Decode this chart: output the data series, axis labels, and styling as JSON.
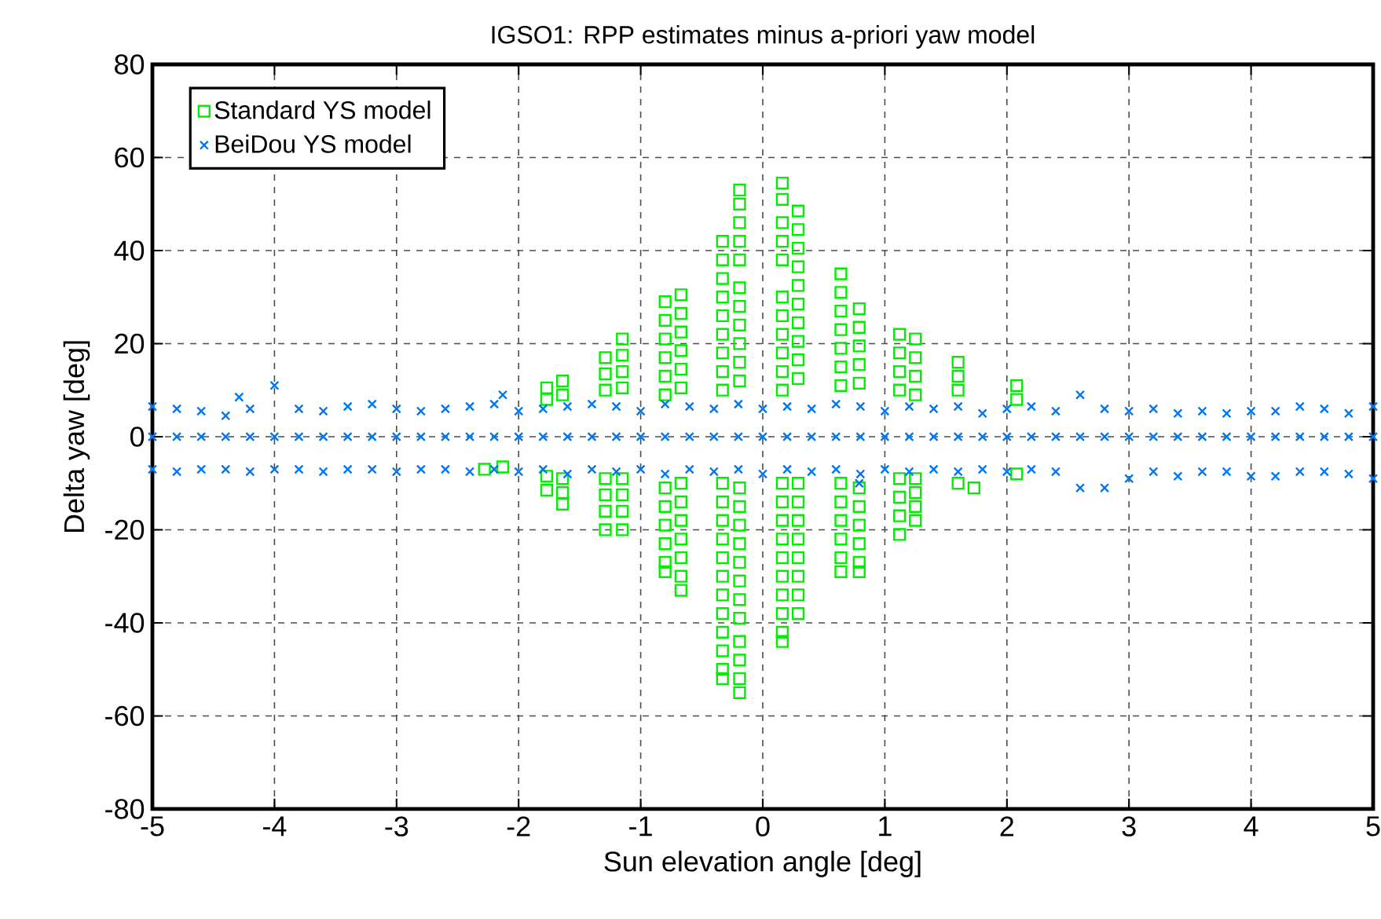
{
  "chart_data": {
    "type": "scatter",
    "title": "IGSO1: RPP estimates minus a-priori yaw model",
    "xlabel": "Sun elevation angle [deg]",
    "ylabel": "Delta yaw [deg]",
    "xlim": [
      -5,
      5
    ],
    "ylim": [
      -80,
      80
    ],
    "xticks": [
      -5,
      -4,
      -3,
      -2,
      -1,
      0,
      1,
      2,
      3,
      4,
      5
    ],
    "yticks": [
      -80,
      -60,
      -40,
      -20,
      0,
      20,
      40,
      60,
      80
    ],
    "grid": true,
    "legend": "top left",
    "series": [
      {
        "name": "Standard YS model",
        "color": "#00ee00",
        "marker": "square",
        "x": [
          -2.28,
          -2.13,
          -1.77,
          -1.77,
          -1.77,
          -1.77,
          -1.64,
          -1.64,
          -1.64,
          -1.64,
          -1.64,
          -1.29,
          -1.29,
          -1.29,
          -1.29,
          -1.29,
          -1.29,
          -1.29,
          -1.15,
          -1.15,
          -1.15,
          -1.15,
          -1.15,
          -1.15,
          -1.15,
          -1.15,
          -0.8,
          -0.8,
          -0.8,
          -0.8,
          -0.8,
          -0.8,
          -0.8,
          -0.8,
          -0.8,
          -0.8,
          -0.8,
          -0.8,
          -0.67,
          -0.67,
          -0.67,
          -0.67,
          -0.67,
          -0.67,
          -0.67,
          -0.67,
          -0.67,
          -0.67,
          -0.67,
          -0.67,
          -0.67,
          -0.33,
          -0.33,
          -0.33,
          -0.33,
          -0.33,
          -0.33,
          -0.33,
          -0.33,
          -0.33,
          -0.33,
          -0.33,
          -0.33,
          -0.33,
          -0.33,
          -0.33,
          -0.33,
          -0.33,
          -0.33,
          -0.33,
          -0.33,
          -0.33,
          -0.19,
          -0.19,
          -0.19,
          -0.19,
          -0.19,
          -0.19,
          -0.19,
          -0.19,
          -0.19,
          -0.19,
          -0.19,
          -0.19,
          -0.19,
          -0.19,
          -0.19,
          -0.19,
          -0.19,
          -0.19,
          -0.19,
          -0.19,
          -0.19,
          -0.19,
          -0.19,
          0.16,
          0.16,
          0.16,
          0.16,
          0.16,
          0.16,
          0.16,
          0.16,
          0.16,
          0.16,
          0.16,
          0.16,
          0.16,
          0.16,
          0.16,
          0.16,
          0.16,
          0.16,
          0.16,
          0.16,
          0.16,
          0.29,
          0.29,
          0.29,
          0.29,
          0.29,
          0.29,
          0.29,
          0.29,
          0.29,
          0.29,
          0.29,
          0.29,
          0.29,
          0.29,
          0.29,
          0.29,
          0.29,
          0.29,
          0.64,
          0.64,
          0.64,
          0.64,
          0.64,
          0.64,
          0.64,
          0.64,
          0.64,
          0.64,
          0.64,
          0.64,
          0.64,
          0.79,
          0.79,
          0.79,
          0.79,
          0.79,
          0.79,
          0.79,
          0.79,
          0.79,
          0.79,
          0.79,
          1.12,
          1.12,
          1.12,
          1.12,
          1.12,
          1.12,
          1.12,
          1.12,
          1.25,
          1.25,
          1.25,
          1.25,
          1.25,
          1.25,
          1.25,
          1.25,
          1.6,
          1.6,
          1.6,
          1.6,
          1.73,
          2.08,
          2.08,
          2.08
        ],
        "values": [
          -7,
          -6.5,
          10.5,
          8,
          -8.5,
          -11.5,
          12,
          9,
          -9,
          -12,
          -14.5,
          17,
          13.5,
          10,
          -9,
          -12.5,
          -16,
          -20,
          21,
          17.5,
          14,
          10.5,
          -9,
          -12.5,
          -16,
          -20,
          29,
          25,
          21,
          17,
          13,
          9,
          -11,
          -15,
          -19,
          -23,
          -27,
          -29,
          30.5,
          26.5,
          22.5,
          18.5,
          14.5,
          10.5,
          -10,
          -14,
          -18,
          -22,
          -26,
          -30,
          -33,
          42,
          38,
          34,
          30,
          26,
          22,
          18,
          14,
          10,
          -10,
          -14,
          -18,
          -22,
          -26,
          -30,
          -34,
          -38,
          -42,
          -46,
          -50,
          -52,
          53,
          50,
          46,
          42,
          38,
          32,
          28,
          24,
          20,
          16,
          12,
          -11,
          -15,
          -19,
          -23,
          -27,
          -31,
          -35,
          -39,
          -44,
          -48,
          -52,
          -55,
          54.5,
          51,
          46,
          42,
          38,
          30,
          26,
          22,
          18,
          14,
          10,
          -10,
          -14,
          -18,
          -22,
          -26,
          -30,
          -34,
          -38,
          -42,
          -44,
          48.5,
          44.5,
          40.5,
          36.5,
          32.5,
          28.5,
          24.5,
          20.5,
          16.5,
          12.5,
          -10,
          -14,
          -18,
          -22,
          -26,
          -30,
          -34,
          -38,
          35,
          31,
          27,
          23,
          19,
          15,
          11,
          -10,
          -14,
          -18,
          -22,
          -26,
          -29,
          27.5,
          23.5,
          19.5,
          15.5,
          11.5,
          -11,
          -15,
          -19,
          -23,
          -27,
          -29,
          22,
          18,
          14,
          10,
          -9,
          -13,
          -17,
          -21,
          21,
          17,
          13,
          9,
          -9,
          -12,
          -15,
          -18,
          16,
          13,
          10,
          -10,
          -11,
          11,
          8,
          -8
        ]
      },
      {
        "name": "BeiDou YS model",
        "color": "#0077ee",
        "marker": "cross",
        "x": [
          -5,
          -4.8,
          -4.6,
          -4.4,
          -4.2,
          -4,
          -3.8,
          -3.6,
          -3.4,
          -3.2,
          -3,
          -2.8,
          -2.6,
          -2.4,
          -2.2,
          -2,
          -1.8,
          -1.6,
          -1.4,
          -1.2,
          -1,
          -0.8,
          -0.6,
          -0.4,
          -0.2,
          0,
          0.2,
          0.4,
          0.6,
          0.8,
          1,
          1.2,
          1.4,
          1.6,
          1.8,
          2,
          2.2,
          2.4,
          2.6,
          2.8,
          3,
          3.2,
          3.4,
          3.6,
          3.8,
          4,
          4.2,
          4.4,
          4.6,
          4.8,
          5,
          -5,
          -4.8,
          -4.6,
          -4.4,
          -4.2,
          -4,
          -3.8,
          -3.6,
          -3.4,
          -3.2,
          -3,
          -2.8,
          -2.6,
          -2.4,
          -2.2,
          -2,
          -1.8,
          -1.6,
          -1.4,
          -1.2,
          -1,
          -0.8,
          -0.6,
          -0.4,
          -0.2,
          0,
          0.2,
          0.4,
          0.6,
          0.8,
          1,
          1.2,
          1.4,
          1.6,
          1.8,
          2,
          2.2,
          2.4,
          2.6,
          2.8,
          3,
          3.2,
          3.4,
          3.6,
          3.8,
          4,
          4.2,
          4.4,
          4.6,
          4.8,
          5,
          -5,
          -4.8,
          -4.6,
          -4.4,
          -4.2,
          -4,
          -3.8,
          -3.6,
          -3.4,
          -3.2,
          -3,
          -2.8,
          -2.6,
          -2.4,
          -2.2,
          -2,
          -1.8,
          -1.6,
          -1.4,
          -1.2,
          -1,
          -0.8,
          -0.6,
          -0.4,
          -0.2,
          0,
          0.2,
          0.4,
          0.6,
          0.8,
          1,
          1.2,
          1.4,
          1.6,
          1.8,
          2,
          2.2,
          2.4,
          2.6,
          2.8,
          3,
          3.2,
          3.4,
          3.6,
          3.8,
          4,
          4.2,
          4.4,
          4.6,
          4.8,
          5,
          -4.29,
          -2.13,
          0.79
        ],
        "values": [
          6.5,
          6,
          5.5,
          4.5,
          6,
          11,
          6,
          5.5,
          6.5,
          7,
          6,
          5.5,
          6,
          6.5,
          7,
          5.5,
          6,
          6.5,
          7,
          6.5,
          5.5,
          7,
          6.5,
          6,
          7,
          6,
          6.5,
          6,
          7,
          6.5,
          5.5,
          6.5,
          6,
          6.5,
          5,
          6,
          6.5,
          5.5,
          9,
          6,
          5.5,
          6,
          5,
          5.5,
          5,
          5.5,
          5.5,
          6.5,
          6,
          5,
          6.5,
          0,
          0,
          0,
          0,
          0,
          0,
          0,
          0,
          0,
          0,
          0,
          0,
          0,
          0,
          0,
          0,
          0,
          0,
          0,
          0,
          0,
          0,
          0,
          0,
          0,
          0,
          0,
          0,
          0,
          0,
          0,
          0,
          0,
          0,
          0,
          0,
          0,
          0,
          0,
          0,
          0,
          0,
          0,
          0,
          0,
          0,
          0,
          0,
          0,
          0,
          0,
          -7,
          -7.5,
          -7,
          -7,
          -7.5,
          -7,
          -7,
          -7.5,
          -7,
          -7,
          -7.5,
          -7,
          -7,
          -7.5,
          -7,
          -7.5,
          -7,
          -8,
          -7,
          -7.5,
          -7,
          -8,
          -7,
          -7.5,
          -7,
          -8,
          -7,
          -7.5,
          -7,
          -8,
          -7,
          -7.5,
          -7,
          -7.5,
          -7,
          -7.5,
          -7,
          -7.5,
          -11,
          -11,
          -9,
          -7.5,
          -8.5,
          -7.5,
          -7.5,
          -8.5,
          -8.5,
          -7.5,
          -7.5,
          -8,
          -9,
          8.5,
          9,
          -10
        ]
      }
    ]
  }
}
